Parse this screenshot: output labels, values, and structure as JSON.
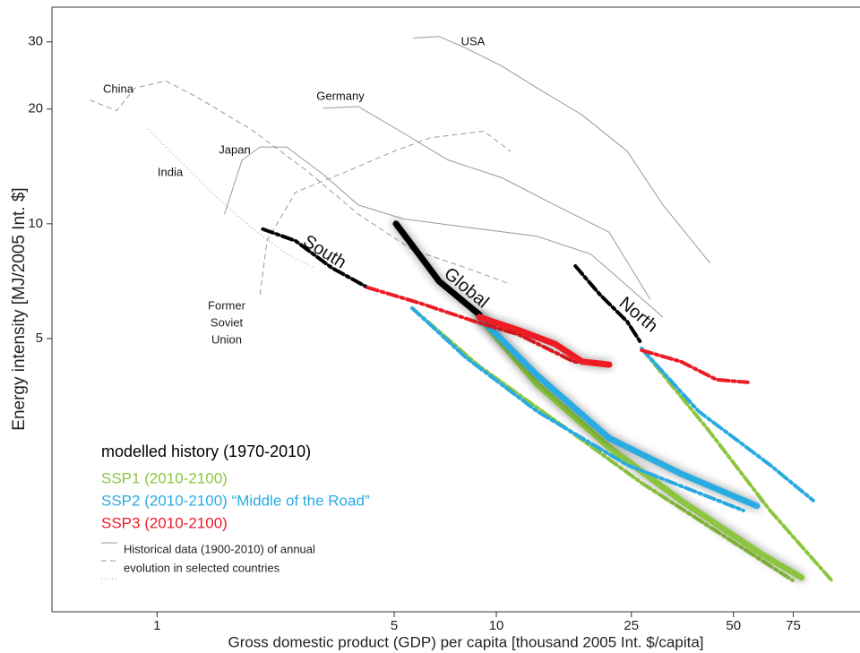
{
  "chart_data": {
    "type": "line",
    "x_label": "Gross domestic product (GDP) per capita [thousand 2005 Int. $/capita]",
    "y_label": "Energy intensity [MJ/2005 Int. $]",
    "log_x": true,
    "log_y": true,
    "xlim": [
      0.49,
      118
    ],
    "ylim": [
      0.96,
      37
    ],
    "xticks": [
      1,
      5,
      10,
      25,
      50,
      75
    ],
    "yticks": [
      5,
      10,
      20,
      30
    ],
    "series": [
      {
        "name": [
          "Historical data (1900-2010) of annual",
          "evolution in selected countries"
        ],
        "color": "#999999",
        "lines": [
          {
            "label": "USA",
            "style": "solid",
            "x": [
              5.69,
              6.78,
              8.13,
              10.4,
              13.2,
              17.9,
              24.3,
              31.0,
              42.7
            ],
            "y": [
              30.7,
              31.0,
              28.9,
              25.9,
              22.7,
              19.3,
              15.5,
              11.2,
              7.88
            ]
          },
          {
            "label": "Germany",
            "style": "solid",
            "x": [
              3.08,
              3.92,
              5.32,
              7.2,
              10.4,
              14.9,
              21.5,
              28.4
            ],
            "y": [
              20.1,
              20.3,
              17.3,
              14.7,
              13.2,
              11.2,
              9.5,
              6.34
            ]
          },
          {
            "label": "China",
            "style": "dashed",
            "x": [
              0.634,
              0.76,
              0.86,
              1.06,
              1.31,
              1.89,
              2.73,
              3.92,
              5.65,
              8.13,
              11.0
            ],
            "y": [
              21.1,
              19.8,
              22.7,
              23.7,
              21.5,
              17.7,
              13.9,
              10.6,
              8.55,
              7.67,
              6.95
            ]
          },
          {
            "label": "Japan",
            "style": "solid",
            "x": [
              1.58,
              1.78,
              2.01,
              2.41,
              3.08,
              3.92,
              5.32,
              8.13,
              13.2,
              19.0,
              31.0
            ],
            "y": [
              10.6,
              14.7,
              15.9,
              15.9,
              13.5,
              11.2,
              10.3,
              9.8,
              9.27,
              8.32,
              5.69
            ]
          },
          {
            "label": "India",
            "style": "dotted",
            "x": [
              0.94,
              1.16,
              1.49,
              1.89,
              2.41,
              2.9
            ],
            "y": [
              17.7,
              14.7,
              11.8,
              9.8,
              8.32,
              7.67
            ]
          },
          {
            "label": [
              "Former",
              "Soviet",
              "Union"
            ],
            "style": "dashed",
            "x": [
              2.01,
              2.11,
              2.56,
              3.47,
              5.0,
              6.38,
              9.19,
              11.0
            ],
            "y": [
              6.52,
              9.02,
              12.1,
              13.5,
              15.5,
              16.8,
              17.5,
              15.5
            ]
          }
        ]
      },
      {
        "name": "modelled history (1970-2010)",
        "color": "#000000",
        "lines": [
          {
            "label": "South",
            "style": "dashdot",
            "x": [
              2.05,
              2.56,
              3.27,
              4.17
            ],
            "y": [
              9.68,
              9.02,
              7.67,
              6.81
            ]
          },
          {
            "label": "Global",
            "style": "solid",
            "x": [
              5.06,
              5.65,
              6.78,
              8.13,
              8.91
            ],
            "y": [
              10.0,
              8.79,
              7.07,
              6.18,
              5.78
            ]
          },
          {
            "label": "North",
            "style": "dashdot",
            "x": [
              17.1,
              20.2,
              24.3,
              26.8
            ],
            "y": [
              7.75,
              6.52,
              5.54,
              4.84
            ]
          }
        ]
      },
      {
        "name": "SSP1 (2010-2100)",
        "color": "#8cc63f",
        "lines": [
          {
            "style": "dashdot",
            "x": [
              5.65,
              8.91,
              14.9,
              26.8,
              74.7
            ],
            "y": [
              6.01,
              4.23,
              3.05,
              2.09,
              1.16
            ]
          },
          {
            "style": "solid",
            "x": [
              8.91,
              13.2,
              21.5,
              35.0,
              60.4,
              79.4
            ],
            "y": [
              5.69,
              3.79,
              2.59,
              1.88,
              1.36,
              1.18
            ]
          },
          {
            "style": "dashdot",
            "x": [
              26.8,
              42.0,
              64.1,
              98.2
            ],
            "y": [
              4.71,
              2.89,
              1.77,
              1.15
            ]
          }
        ]
      },
      {
        "name": "SSP2 (2010-2100) “Middle of the Road”",
        "color": "#29abe2",
        "lines": [
          {
            "style": "dashdot",
            "x": [
              5.65,
              8.13,
              13.2,
              24.3,
              53.5
            ],
            "y": [
              6.01,
              4.46,
              3.22,
              2.33,
              1.77
            ]
          },
          {
            "style": "solid",
            "x": [
              8.91,
              13.2,
              21.5,
              35.0,
              58.6
            ],
            "y": [
              5.69,
              4.0,
              2.74,
              2.21,
              1.82
            ]
          },
          {
            "style": "dashdot",
            "x": [
              26.8,
              39.5,
              64.1,
              85.9
            ],
            "y": [
              4.71,
              3.22,
              2.33,
              1.88
            ]
          }
        ]
      },
      {
        "name": "SSP3 (2010-2100)",
        "color": "#ed1c24",
        "lines": [
          {
            "style": "dashdot",
            "x": [
              4.17,
              6.0,
              8.65,
              11.7,
              16.9,
              21.5
            ],
            "y": [
              6.81,
              6.18,
              5.54,
              5.11,
              4.35,
              4.27
            ]
          },
          {
            "style": "solid",
            "x": [
              8.91,
              11.7,
              14.9,
              17.9,
              21.5
            ],
            "y": [
              5.69,
              5.25,
              4.84,
              4.35,
              4.27
            ]
          },
          {
            "style": "dashdot",
            "x": [
              26.8,
              35.0,
              44.6,
              55.1
            ],
            "y": [
              4.66,
              4.35,
              3.9,
              3.84
            ]
          }
        ]
      }
    ]
  }
}
